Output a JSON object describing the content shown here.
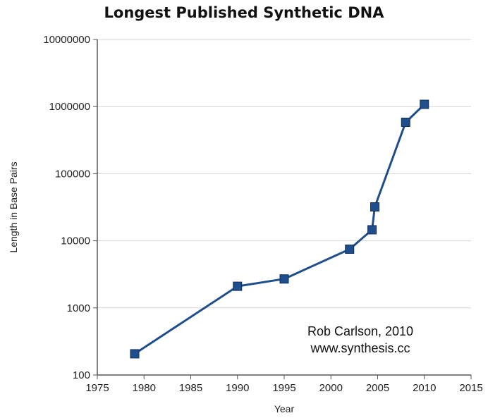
{
  "chart_data": {
    "type": "line",
    "title": "Longest Published Synthetic DNA",
    "xlabel": "Year",
    "ylabel": "Length in Base Pairs",
    "xlim": [
      1975,
      2015
    ],
    "ylim": [
      100,
      10000000
    ],
    "yscale": "log",
    "grid": "horizontal",
    "x_ticks": [
      1975,
      1980,
      1985,
      1990,
      1995,
      2000,
      2005,
      2010,
      2015
    ],
    "y_ticks": [
      100,
      1000,
      10000,
      100000,
      1000000,
      10000000
    ],
    "x_tick_labels": [
      "1975",
      "1980",
      "1985",
      "1990",
      "1995",
      "2000",
      "2005",
      "2010",
      "2015"
    ],
    "y_tick_labels": [
      "100",
      "1000",
      "10000",
      "100000",
      "1000000",
      "10000000"
    ],
    "series": [
      {
        "color": "#1f4e8c",
        "marker": "square",
        "points": [
          {
            "x": 1979,
            "y": 207
          },
          {
            "x": 1990,
            "y": 2100
          },
          {
            "x": 1995,
            "y": 2700
          },
          {
            "x": 2002,
            "y": 7500
          },
          {
            "x": 2004.4,
            "y": 14600
          },
          {
            "x": 2004.7,
            "y": 32000
          },
          {
            "x": 2008,
            "y": 583000
          },
          {
            "x": 2010,
            "y": 1080000
          }
        ]
      }
    ],
    "annotations": [
      "Rob Carlson, 2010",
      "www.synthesis.cc"
    ]
  }
}
